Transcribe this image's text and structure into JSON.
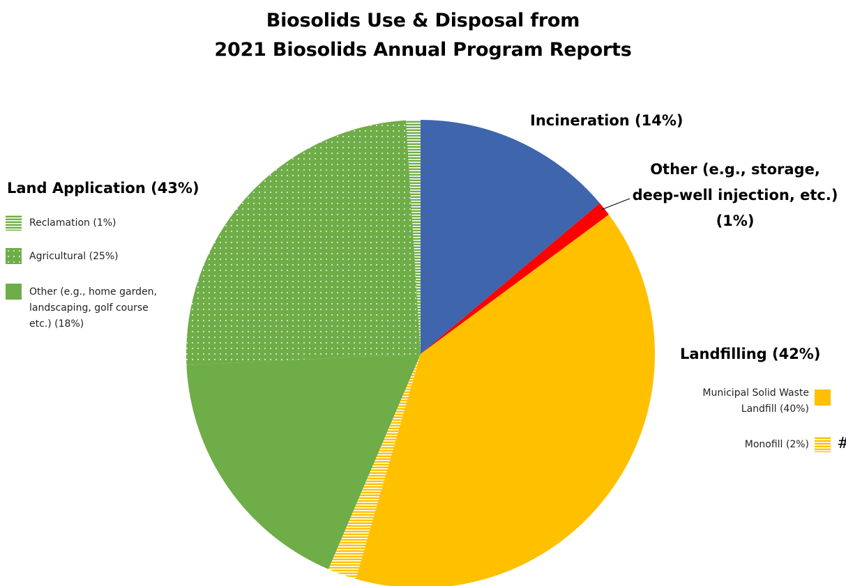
{
  "chart_data": {
    "type": "pie",
    "title_lines": [
      "Biosolids Use & Disposal from",
      "2021 Biosolids Annual Program Reports"
    ],
    "slices": [
      {
        "label": "Incineration",
        "value": 14,
        "color": "#3F65AD",
        "pattern": "solid"
      },
      {
        "label": "Other (e.g., storage, deep-well injection, etc.)",
        "value": 1,
        "color": "#FF0000",
        "pattern": "solid"
      },
      {
        "label": "Municipal Solid Waste Landfill",
        "value": 40,
        "color": "#FFC000",
        "pattern": "solid"
      },
      {
        "label": "Monofill",
        "value": 2,
        "color": "#FFC000",
        "pattern": "hstripe"
      },
      {
        "label": "Other (e.g., home garden, landscaping, golf course etc.)",
        "value": 18,
        "color": "#6EAD47",
        "pattern": "solid"
      },
      {
        "label": "Agricultural",
        "value": 25,
        "color": "#6EAD47",
        "pattern": "dots"
      },
      {
        "label": "Reclamation",
        "value": 1,
        "color": "#6EAD47",
        "pattern": "hstripe"
      }
    ],
    "group_labels": {
      "incineration": "Incineration (14%)",
      "other": [
        "Other (e.g., storage,",
        "deep-well injection, etc.)",
        "(1%)"
      ],
      "land_application": "Land Application (43%)",
      "landfilling": "Landfilling (42%)"
    },
    "legend_land": [
      {
        "label": [
          "Reclamation (1%)"
        ],
        "color": "#6EAD47",
        "pattern": "hstripe"
      },
      {
        "label": [
          "Agricultural (25%)"
        ],
        "color": "#6EAD47",
        "pattern": "dots"
      },
      {
        "label": [
          "Other (e.g., home garden,",
          "landscaping, golf course",
          "etc.) (18%)"
        ],
        "color": "#6EAD47",
        "pattern": "solid"
      }
    ],
    "legend_landfill": [
      {
        "label": [
          "Municipal Solid Waste",
          "Landfill (40%)"
        ],
        "color": "#FFC000",
        "pattern": "solid"
      },
      {
        "label": [
          "Monofill (2%)"
        ],
        "color": "#FFC000",
        "pattern": "hstripe"
      }
    ],
    "edge_glyph": "#"
  }
}
